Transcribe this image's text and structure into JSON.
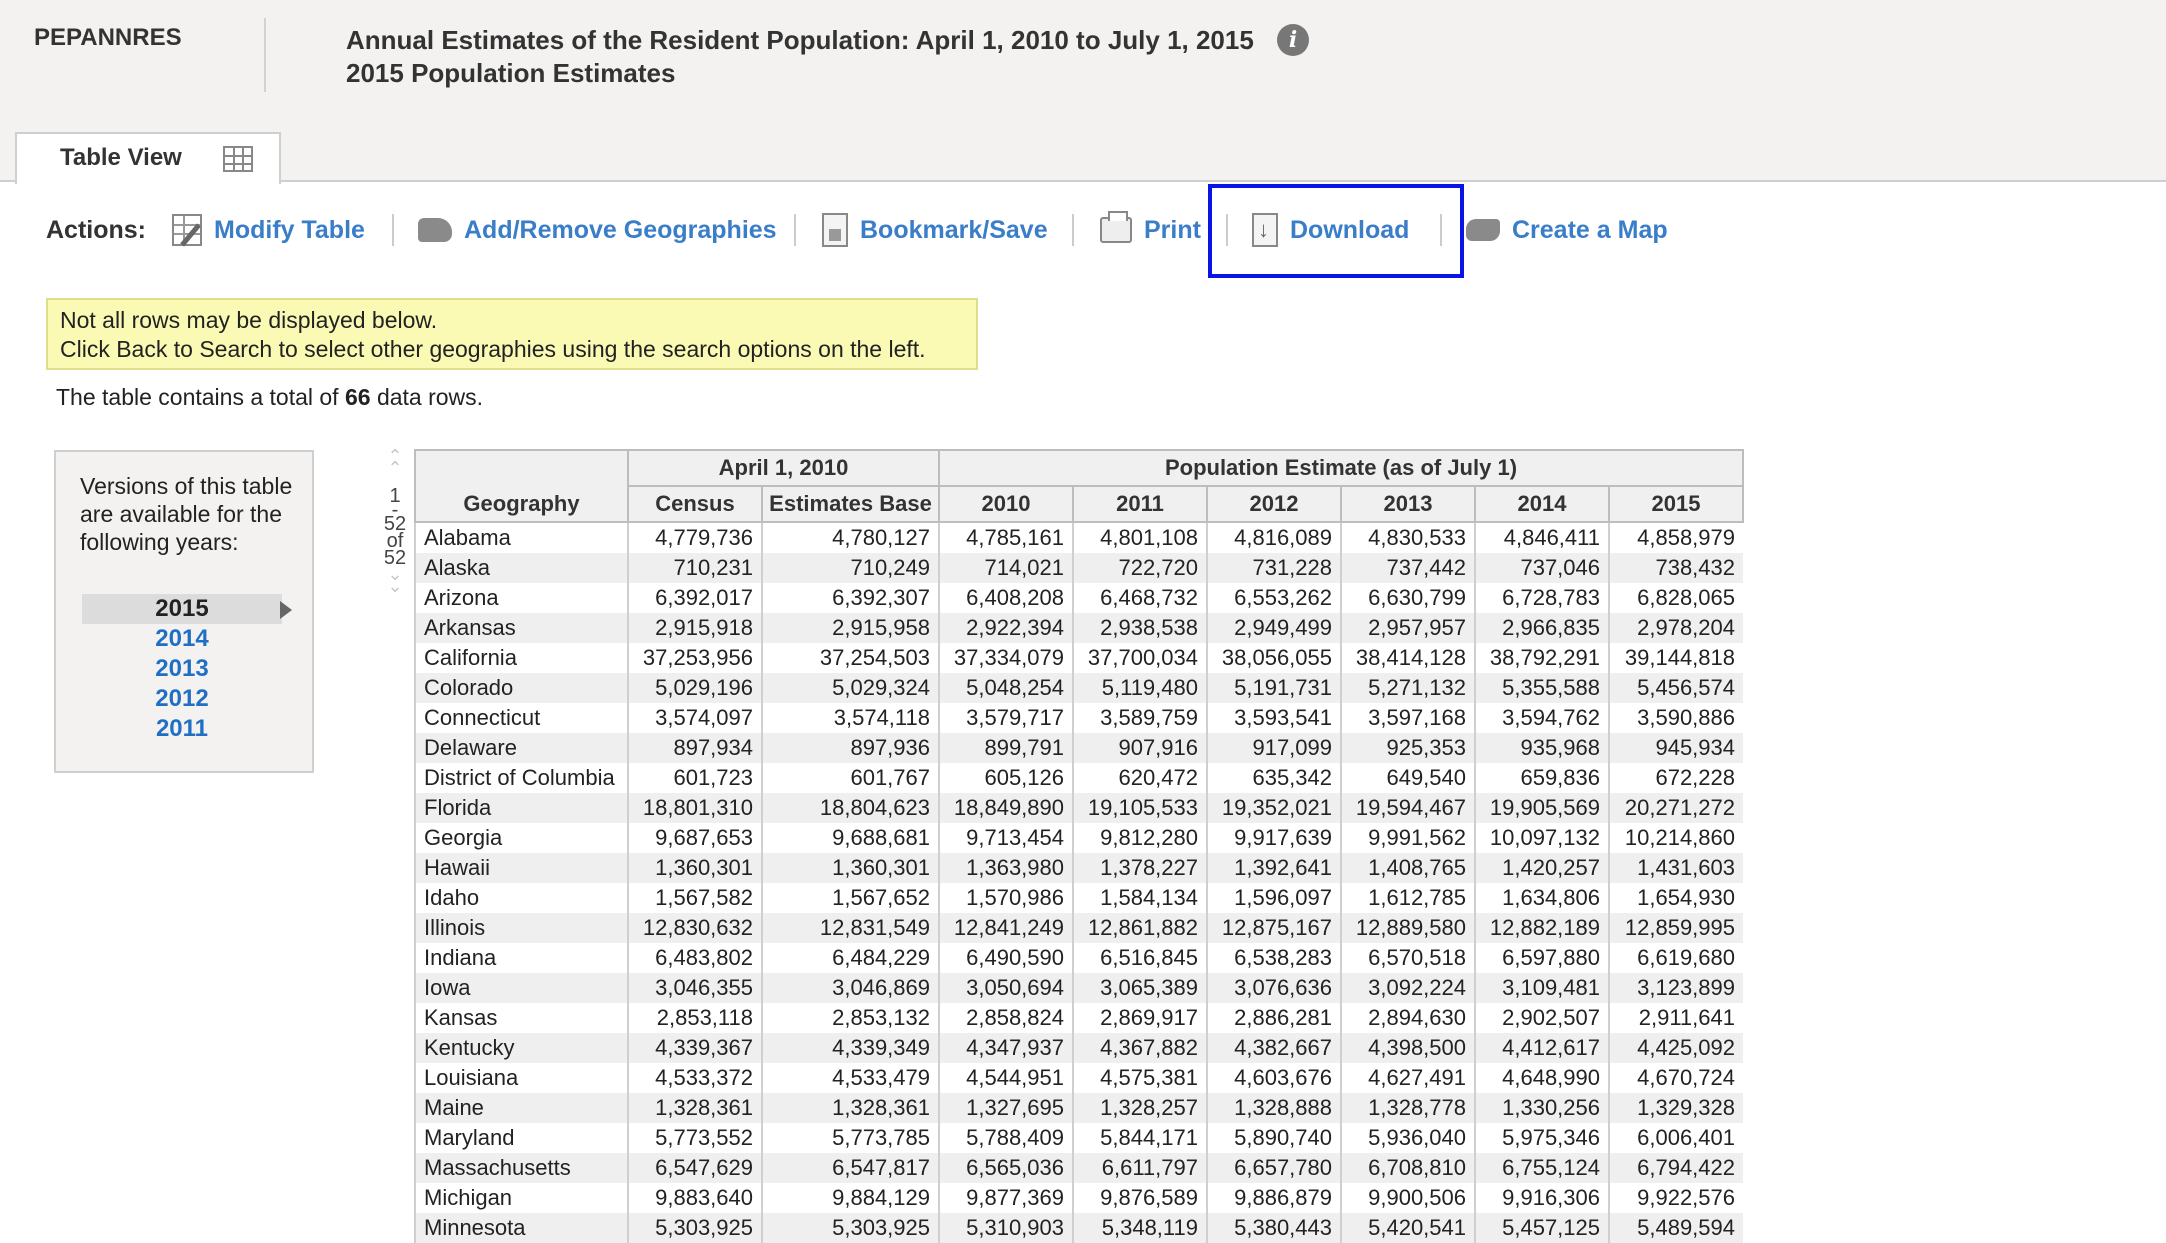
{
  "header": {
    "table_id": "PEPANNRES",
    "title_line1": "Annual Estimates of the Resident Population: April 1, 2010 to July 1, 2015",
    "title_line2": "2015 Population Estimates",
    "info_glyph": "i"
  },
  "tab": {
    "label": "Table View",
    "icon": "table-grid-icon"
  },
  "actions": {
    "label": "Actions:",
    "items": [
      {
        "label": "Modify Table",
        "icon": "modify-table-icon"
      },
      {
        "label": "Add/Remove Geographies",
        "icon": "geography-icon"
      },
      {
        "label": "Bookmark/Save",
        "icon": "bookmark-icon"
      },
      {
        "label": "Print",
        "icon": "printer-icon"
      },
      {
        "label": "Download",
        "icon": "download-icon"
      },
      {
        "label": "Create a Map",
        "icon": "map-icon"
      }
    ],
    "highlight_color": "#0a14e6"
  },
  "notice": {
    "line1": "Not all rows may be displayed below.",
    "line2": "Click Back to Search to select other geographies using the search options on the left."
  },
  "rowcount": {
    "prefix": "The table contains a total of",
    "count": "66",
    "suffix": "data rows."
  },
  "versions": {
    "text": "Versions of this table are available for the following years:",
    "selected": "2015",
    "years": [
      "2014",
      "2013",
      "2012",
      "2011"
    ]
  },
  "pager": {
    "start": "1",
    "dash": "-",
    "end": "52",
    "of": "of",
    "total": "52"
  },
  "table": {
    "group_headers": [
      "April 1, 2010",
      "Population Estimate (as of July 1)"
    ],
    "columns": [
      "Geography",
      "Census",
      "Estimates Base",
      "2010",
      "2011",
      "2012",
      "2013",
      "2014",
      "2015"
    ],
    "rows": [
      [
        "Alabama",
        "4,779,736",
        "4,780,127",
        "4,785,161",
        "4,801,108",
        "4,816,089",
        "4,830,533",
        "4,846,411",
        "4,858,979"
      ],
      [
        "Alaska",
        "710,231",
        "710,249",
        "714,021",
        "722,720",
        "731,228",
        "737,442",
        "737,046",
        "738,432"
      ],
      [
        "Arizona",
        "6,392,017",
        "6,392,307",
        "6,408,208",
        "6,468,732",
        "6,553,262",
        "6,630,799",
        "6,728,783",
        "6,828,065"
      ],
      [
        "Arkansas",
        "2,915,918",
        "2,915,958",
        "2,922,394",
        "2,938,538",
        "2,949,499",
        "2,957,957",
        "2,966,835",
        "2,978,204"
      ],
      [
        "California",
        "37,253,956",
        "37,254,503",
        "37,334,079",
        "37,700,034",
        "38,056,055",
        "38,414,128",
        "38,792,291",
        "39,144,818"
      ],
      [
        "Colorado",
        "5,029,196",
        "5,029,324",
        "5,048,254",
        "5,119,480",
        "5,191,731",
        "5,271,132",
        "5,355,588",
        "5,456,574"
      ],
      [
        "Connecticut",
        "3,574,097",
        "3,574,118",
        "3,579,717",
        "3,589,759",
        "3,593,541",
        "3,597,168",
        "3,594,762",
        "3,590,886"
      ],
      [
        "Delaware",
        "897,934",
        "897,936",
        "899,791",
        "907,916",
        "917,099",
        "925,353",
        "935,968",
        "945,934"
      ],
      [
        "District of Columbia",
        "601,723",
        "601,767",
        "605,126",
        "620,472",
        "635,342",
        "649,540",
        "659,836",
        "672,228"
      ],
      [
        "Florida",
        "18,801,310",
        "18,804,623",
        "18,849,890",
        "19,105,533",
        "19,352,021",
        "19,594,467",
        "19,905,569",
        "20,271,272"
      ],
      [
        "Georgia",
        "9,687,653",
        "9,688,681",
        "9,713,454",
        "9,812,280",
        "9,917,639",
        "9,991,562",
        "10,097,132",
        "10,214,860"
      ],
      [
        "Hawaii",
        "1,360,301",
        "1,360,301",
        "1,363,980",
        "1,378,227",
        "1,392,641",
        "1,408,765",
        "1,420,257",
        "1,431,603"
      ],
      [
        "Idaho",
        "1,567,582",
        "1,567,652",
        "1,570,986",
        "1,584,134",
        "1,596,097",
        "1,612,785",
        "1,634,806",
        "1,654,930"
      ],
      [
        "Illinois",
        "12,830,632",
        "12,831,549",
        "12,841,249",
        "12,861,882",
        "12,875,167",
        "12,889,580",
        "12,882,189",
        "12,859,995"
      ],
      [
        "Indiana",
        "6,483,802",
        "6,484,229",
        "6,490,590",
        "6,516,845",
        "6,538,283",
        "6,570,518",
        "6,597,880",
        "6,619,680"
      ],
      [
        "Iowa",
        "3,046,355",
        "3,046,869",
        "3,050,694",
        "3,065,389",
        "3,076,636",
        "3,092,224",
        "3,109,481",
        "3,123,899"
      ],
      [
        "Kansas",
        "2,853,118",
        "2,853,132",
        "2,858,824",
        "2,869,917",
        "2,886,281",
        "2,894,630",
        "2,902,507",
        "2,911,641"
      ],
      [
        "Kentucky",
        "4,339,367",
        "4,339,349",
        "4,347,937",
        "4,367,882",
        "4,382,667",
        "4,398,500",
        "4,412,617",
        "4,425,092"
      ],
      [
        "Louisiana",
        "4,533,372",
        "4,533,479",
        "4,544,951",
        "4,575,381",
        "4,603,676",
        "4,627,491",
        "4,648,990",
        "4,670,724"
      ],
      [
        "Maine",
        "1,328,361",
        "1,328,361",
        "1,327,695",
        "1,328,257",
        "1,328,888",
        "1,328,778",
        "1,330,256",
        "1,329,328"
      ],
      [
        "Maryland",
        "5,773,552",
        "5,773,785",
        "5,788,409",
        "5,844,171",
        "5,890,740",
        "5,936,040",
        "5,975,346",
        "6,006,401"
      ],
      [
        "Massachusetts",
        "6,547,629",
        "6,547,817",
        "6,565,036",
        "6,611,797",
        "6,657,780",
        "6,708,810",
        "6,755,124",
        "6,794,422"
      ],
      [
        "Michigan",
        "9,883,640",
        "9,884,129",
        "9,877,369",
        "9,876,589",
        "9,886,879",
        "9,900,506",
        "9,916,306",
        "9,922,576"
      ],
      [
        "Minnesota",
        "5,303,925",
        "5,303,925",
        "5,310,903",
        "5,348,119",
        "5,380,443",
        "5,420,541",
        "5,457,125",
        "5,489,594"
      ]
    ]
  }
}
